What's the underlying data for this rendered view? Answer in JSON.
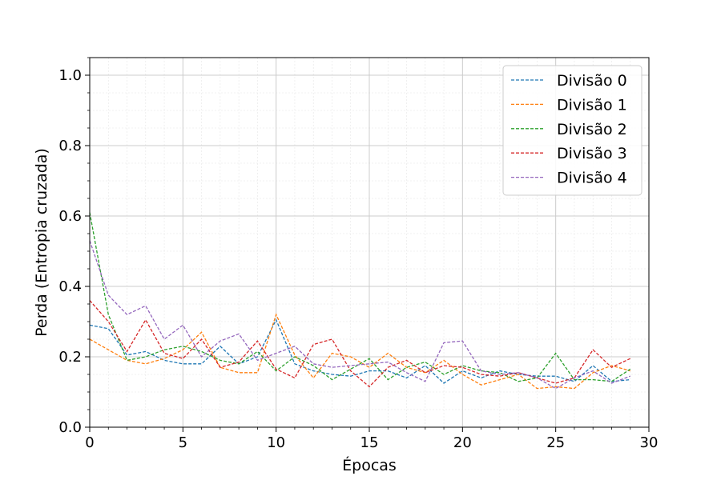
{
  "chart_data": {
    "type": "line",
    "xlabel": "Épocas",
    "ylabel": "Perda (Entropia cruzada)",
    "xlim": [
      0,
      30
    ],
    "ylim": [
      0,
      1.05
    ],
    "xticks": [
      0,
      5,
      10,
      15,
      20,
      25,
      30
    ],
    "yticks": [
      0.0,
      0.2,
      0.4,
      0.6,
      0.8,
      1.0
    ],
    "xtick_labels": [
      "0",
      "5",
      "10",
      "15",
      "20",
      "25",
      "30"
    ],
    "ytick_labels": [
      "0.0",
      "0.2",
      "0.4",
      "0.6",
      "0.8",
      "1.0"
    ],
    "grid": true,
    "minor_grid": true,
    "legend_position": "top-right",
    "x": [
      0,
      1,
      2,
      3,
      4,
      5,
      6,
      7,
      8,
      9,
      10,
      11,
      12,
      13,
      14,
      15,
      16,
      17,
      18,
      19,
      20,
      21,
      22,
      23,
      24,
      25,
      26,
      27,
      28,
      29
    ],
    "series": [
      {
        "name": "Divisão 0",
        "color": "#1f77b4",
        "values": [
          0.29,
          0.28,
          0.205,
          0.215,
          0.19,
          0.18,
          0.18,
          0.23,
          0.18,
          0.2,
          0.305,
          0.18,
          0.16,
          0.15,
          0.145,
          0.16,
          0.16,
          0.14,
          0.175,
          0.125,
          0.16,
          0.14,
          0.16,
          0.15,
          0.145,
          0.145,
          0.13,
          0.175,
          0.13,
          0.135
        ]
      },
      {
        "name": "Divisão 1",
        "color": "#ff7f0e",
        "values": [
          0.25,
          0.22,
          0.19,
          0.18,
          0.195,
          0.22,
          0.27,
          0.17,
          0.155,
          0.155,
          0.32,
          0.205,
          0.14,
          0.21,
          0.2,
          0.17,
          0.21,
          0.17,
          0.155,
          0.19,
          0.15,
          0.12,
          0.135,
          0.15,
          0.11,
          0.115,
          0.11,
          0.155,
          0.175,
          0.16
        ]
      },
      {
        "name": "Divisão 2",
        "color": "#2ca02c",
        "values": [
          0.61,
          0.32,
          0.19,
          0.2,
          0.22,
          0.23,
          0.215,
          0.19,
          0.18,
          0.215,
          0.16,
          0.2,
          0.175,
          0.135,
          0.165,
          0.195,
          0.135,
          0.17,
          0.185,
          0.15,
          0.175,
          0.16,
          0.155,
          0.13,
          0.14,
          0.21,
          0.135,
          0.135,
          0.13,
          0.165
        ]
      },
      {
        "name": "Divisão 3",
        "color": "#d62728",
        "values": [
          0.36,
          0.3,
          0.215,
          0.305,
          0.21,
          0.195,
          0.25,
          0.17,
          0.185,
          0.245,
          0.165,
          0.14,
          0.235,
          0.25,
          0.16,
          0.115,
          0.17,
          0.19,
          0.155,
          0.175,
          0.17,
          0.15,
          0.145,
          0.155,
          0.14,
          0.125,
          0.14,
          0.22,
          0.17,
          0.195
        ]
      },
      {
        "name": "Divisão 4",
        "color": "#9467bd",
        "values": [
          0.53,
          0.375,
          0.32,
          0.345,
          0.25,
          0.29,
          0.2,
          0.245,
          0.265,
          0.19,
          0.21,
          0.23,
          0.18,
          0.17,
          0.175,
          0.18,
          0.185,
          0.155,
          0.13,
          0.24,
          0.245,
          0.16,
          0.15,
          0.155,
          0.14,
          0.11,
          0.14,
          0.16,
          0.125,
          0.145
        ]
      }
    ]
  }
}
